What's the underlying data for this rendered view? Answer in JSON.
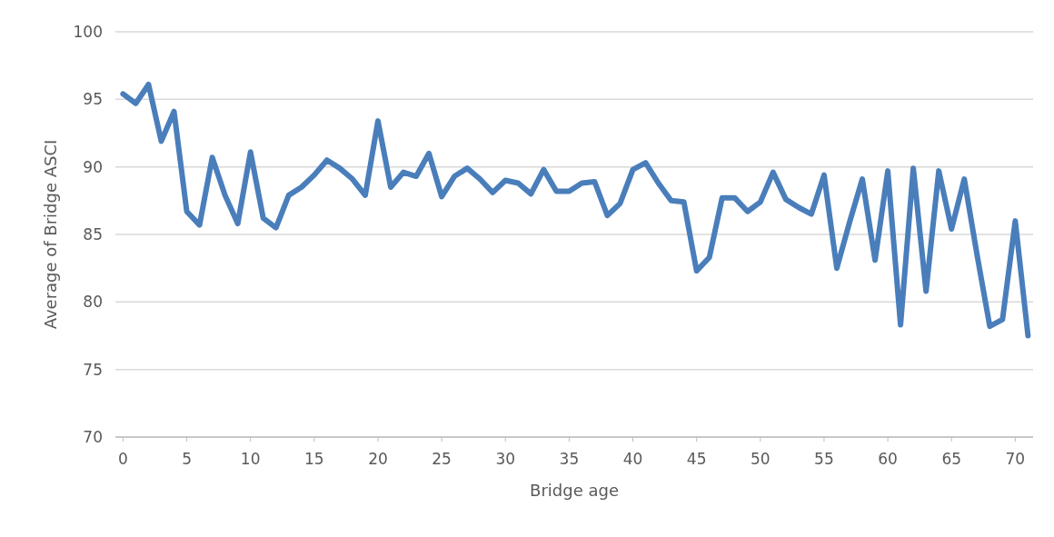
{
  "chart_data": {
    "type": "line",
    "xlabel": "Bridge age",
    "ylabel": "Average of Bridge ASCI",
    "x": [
      0,
      1,
      2,
      3,
      4,
      5,
      6,
      7,
      8,
      9,
      10,
      11,
      12,
      13,
      14,
      15,
      16,
      17,
      18,
      19,
      20,
      21,
      22,
      23,
      24,
      25,
      26,
      27,
      28,
      29,
      30,
      31,
      32,
      33,
      34,
      35,
      36,
      37,
      38,
      39,
      40,
      41,
      42,
      43,
      44,
      45,
      46,
      47,
      48,
      49,
      50,
      51,
      52,
      53,
      54,
      55,
      56,
      57,
      58,
      59,
      60,
      61,
      62,
      63,
      64,
      65,
      66,
      67,
      68,
      69,
      70,
      71
    ],
    "series": [
      {
        "color": "#4a7ebb",
        "values": [
          95.4,
          94.7,
          96.1,
          91.9,
          94.1,
          86.7,
          85.7,
          90.7,
          87.9,
          85.8,
          91.1,
          86.2,
          85.5,
          87.9,
          88.5,
          89.4,
          90.5,
          89.9,
          89.1,
          87.9,
          93.4,
          88.5,
          89.6,
          89.3,
          91.0,
          87.8,
          89.3,
          89.9,
          89.1,
          88.1,
          89.0,
          88.8,
          88.0,
          89.8,
          88.2,
          88.2,
          88.8,
          88.9,
          86.4,
          87.3,
          89.8,
          90.3,
          88.8,
          87.5,
          87.4,
          82.3,
          83.3,
          87.7,
          87.7,
          86.7,
          87.4,
          89.6,
          87.6,
          87.0,
          86.5,
          89.4,
          82.5,
          85.9,
          89.1,
          83.1,
          89.7,
          78.3,
          89.9,
          80.8,
          89.7,
          85.4,
          89.1,
          83.5,
          78.2,
          78.7,
          86.0,
          77.5
        ]
      }
    ],
    "xlim": [
      -0.6,
      71.4
    ],
    "xticks": [
      0,
      5,
      10,
      15,
      20,
      25,
      30,
      35,
      40,
      45,
      50,
      55,
      60,
      65,
      70
    ],
    "ylim": [
      70,
      100
    ],
    "yticks": [
      70,
      75,
      80,
      85,
      90,
      95,
      100
    ],
    "grid": "y",
    "marker": "none",
    "line_style": "solid"
  }
}
